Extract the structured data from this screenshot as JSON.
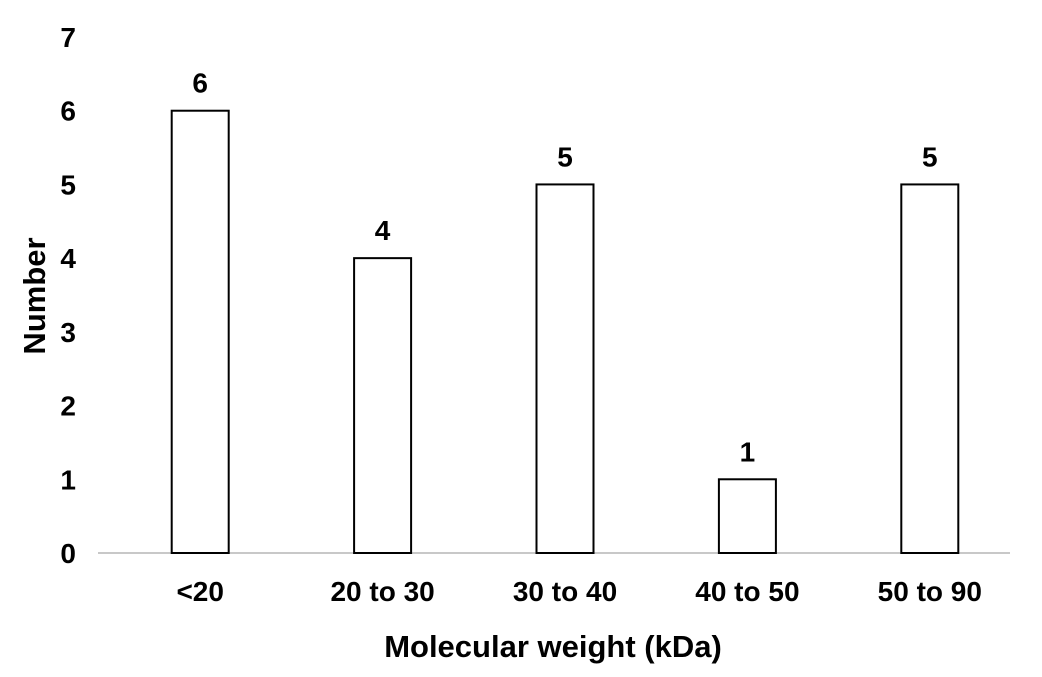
{
  "chart_data": {
    "type": "bar",
    "title": "",
    "xlabel": "Molecular weight (kDa)",
    "ylabel": "Number",
    "categories": [
      "<20",
      "20 to 30",
      "30 to 40",
      "40 to 50",
      "50 to 90"
    ],
    "values": [
      6,
      4,
      5,
      1,
      5
    ],
    "data_labels": [
      "6",
      "4",
      "5",
      "1",
      "5"
    ],
    "ylim": [
      0,
      7
    ],
    "yticks": [
      0,
      1,
      2,
      3,
      4,
      5,
      6,
      7
    ],
    "grid": false,
    "legend": "none",
    "colors": {
      "bar_fill": "#ffffff",
      "bar_stroke": "#000000",
      "baseline": "#c8c8c8",
      "text": "#000000"
    }
  }
}
